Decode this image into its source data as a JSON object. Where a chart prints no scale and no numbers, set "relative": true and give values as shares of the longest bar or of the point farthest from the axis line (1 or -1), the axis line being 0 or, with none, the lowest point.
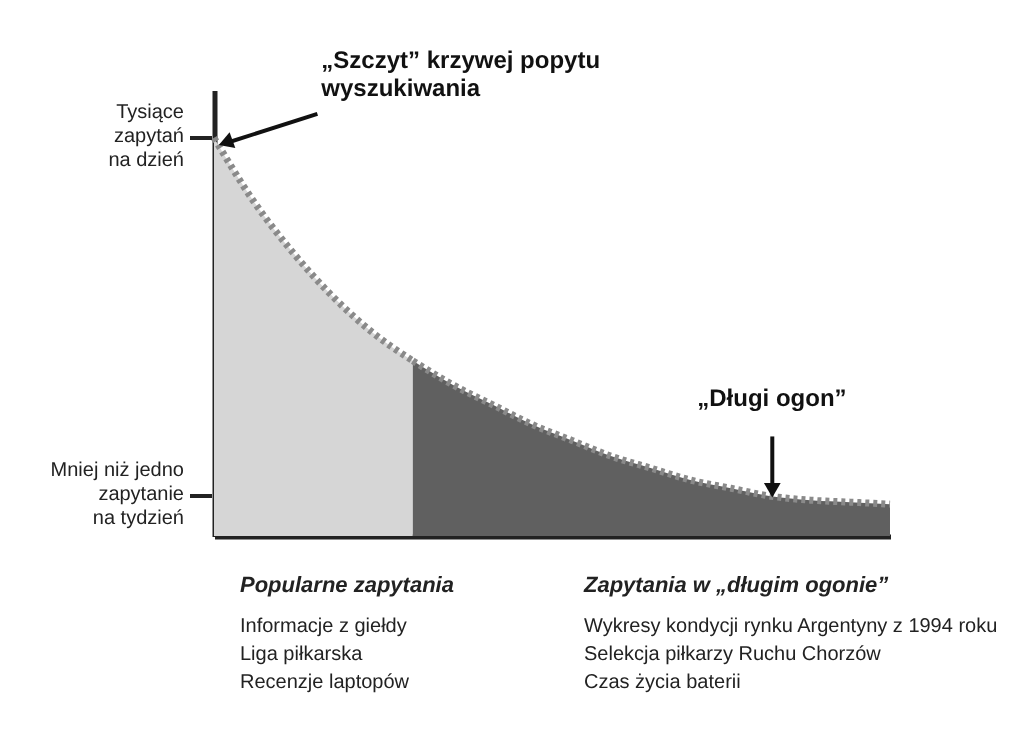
{
  "chart_data": {
    "type": "area",
    "relative": true,
    "line_style": "dotted",
    "categories": [
      null,
      null,
      null,
      null,
      null,
      null,
      null,
      null,
      null,
      null,
      null,
      null,
      null,
      null,
      null,
      null,
      null,
      null
    ],
    "series": [
      {
        "color": "#d6d6d6",
        "values": [
          1.0,
          0.84,
          0.71,
          0.6,
          0.51,
          0.44,
          null,
          null,
          null,
          null,
          null,
          null,
          null,
          null,
          null,
          null,
          null,
          null
        ]
      },
      {
        "color": "#606060",
        "values": [
          null,
          null,
          null,
          null,
          null,
          0.44,
          0.38,
          0.33,
          0.28,
          0.24,
          0.2,
          0.17,
          0.14,
          0.12,
          0.1,
          0.09,
          0.085,
          0.08
        ]
      }
    ],
    "annotations": [
      "„Szczyt” krzywej popytu\nwyszukiwania",
      "„Długi ogon”",
      "Tysiące\nzapytań\nna dzień",
      "Mniej niż jedno\nzapytanie\nna tydzień",
      "Popularne zapytania",
      "Informacje z giełdy",
      "Liga piłkarska",
      "Recenzje laptopów",
      "Zapytania w „długim ogonie”",
      "Wykresy kondycji rynku Argentyny z 1994 roku",
      "Selekcja piłkarzy Ruchu Chorzów",
      "Czas życia baterii"
    ]
  }
}
